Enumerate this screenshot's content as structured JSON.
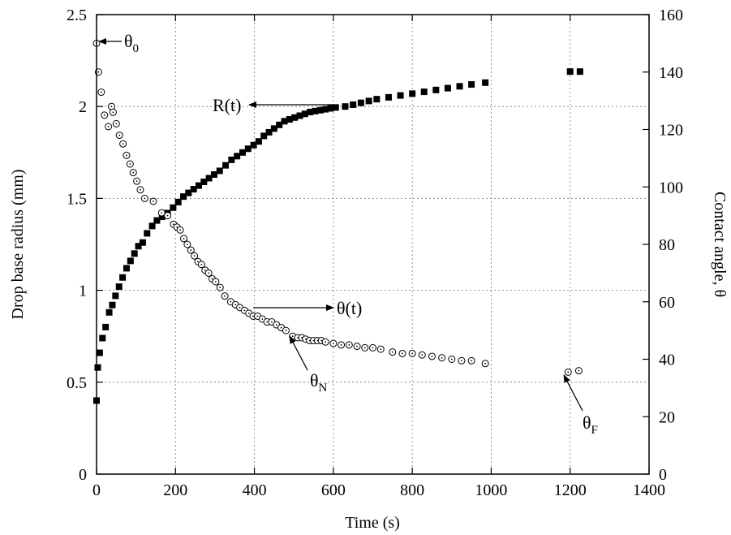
{
  "chart_data": {
    "type": "scatter",
    "xlabel": "Time (s)",
    "ylabel": "Drop base radius (mm)",
    "y2label": "Contact angle, θ",
    "xlim": [
      0,
      1400
    ],
    "ylim": [
      0,
      2.5
    ],
    "y2lim": [
      0,
      160
    ],
    "xticks": [
      "0",
      "200",
      "400",
      "600",
      "800",
      "1000",
      "1200",
      "1400"
    ],
    "yticks": [
      "0",
      "0.5",
      "1",
      "1.5",
      "2",
      "2.5"
    ],
    "y2ticks": [
      "0",
      "20",
      "40",
      "60",
      "80",
      "100",
      "120",
      "140",
      "160"
    ],
    "grid": true,
    "series": [
      {
        "marker": "filled-square",
        "axis": "left",
        "x": [
          0,
          3,
          8,
          15,
          23,
          32,
          40,
          48,
          57,
          66,
          76,
          86,
          96,
          106,
          117,
          128,
          141,
          153,
          166,
          180,
          194,
          207,
          220,
          233,
          246,
          259,
          272,
          285,
          298,
          312,
          327,
          342,
          356,
          370,
          384,
          398,
          411,
          424,
          437,
          450,
          463,
          476,
          489,
          502,
          515,
          528,
          541,
          554,
          567,
          580,
          593,
          606,
          630,
          650,
          670,
          690,
          710,
          740,
          770,
          800,
          830,
          860,
          890,
          920,
          950,
          985,
          1200,
          1225
        ],
        "y": [
          0.4,
          0.58,
          0.66,
          0.74,
          0.8,
          0.88,
          0.92,
          0.97,
          1.02,
          1.07,
          1.12,
          1.16,
          1.2,
          1.24,
          1.26,
          1.31,
          1.35,
          1.38,
          1.4,
          1.42,
          1.45,
          1.48,
          1.51,
          1.53,
          1.55,
          1.57,
          1.59,
          1.61,
          1.63,
          1.65,
          1.68,
          1.71,
          1.73,
          1.75,
          1.77,
          1.79,
          1.81,
          1.84,
          1.86,
          1.88,
          1.9,
          1.92,
          1.93,
          1.94,
          1.95,
          1.96,
          1.97,
          1.975,
          1.98,
          1.985,
          1.99,
          1.995,
          2.0,
          2.01,
          2.02,
          2.03,
          2.04,
          2.05,
          2.06,
          2.07,
          2.08,
          2.09,
          2.1,
          2.11,
          2.12,
          2.13,
          2.19,
          2.19
        ]
      },
      {
        "marker": "open-circle",
        "axis": "right",
        "x": [
          0,
          5,
          12,
          20,
          30,
          38,
          42,
          50,
          58,
          67,
          76,
          85,
          93,
          102,
          111,
          122,
          144,
          165,
          180,
          195,
          204,
          212,
          221,
          230,
          239,
          248,
          257,
          266,
          275,
          284,
          293,
          302,
          313,
          325,
          340,
          352,
          363,
          375,
          386,
          397,
          408,
          420,
          432,
          444,
          456,
          468,
          480,
          497,
          510,
          520,
          530,
          540,
          550,
          560,
          570,
          580,
          600,
          620,
          640,
          660,
          680,
          700,
          720,
          750,
          775,
          800,
          825,
          850,
          875,
          900,
          925,
          950,
          985,
          1195,
          1222
        ],
        "y": [
          150,
          140,
          133,
          125,
          121,
          128,
          126,
          122,
          118,
          115,
          111,
          108,
          105,
          102,
          99,
          96,
          95,
          91,
          90,
          87,
          86,
          85,
          82,
          80,
          78,
          76,
          74,
          73,
          71,
          70,
          68,
          67,
          65,
          62,
          60,
          59,
          58,
          57,
          56,
          55,
          55,
          54,
          53,
          53,
          52,
          51,
          50,
          48,
          47.5,
          47.5,
          47,
          46.5,
          46.5,
          46.5,
          46.5,
          46,
          45.5,
          45,
          45,
          44.5,
          44,
          44,
          43.5,
          42.5,
          42,
          42,
          41.5,
          41,
          40.5,
          40,
          39.5,
          39.5,
          38.5,
          35.5,
          36
        ]
      }
    ],
    "annotations": [
      {
        "label": "θ",
        "sub": "0"
      },
      {
        "label": "R(t)",
        "sub": ""
      },
      {
        "label": "θ(t)",
        "sub": ""
      },
      {
        "label": "θ",
        "sub": "N"
      },
      {
        "label": "θ",
        "sub": "F"
      }
    ]
  }
}
